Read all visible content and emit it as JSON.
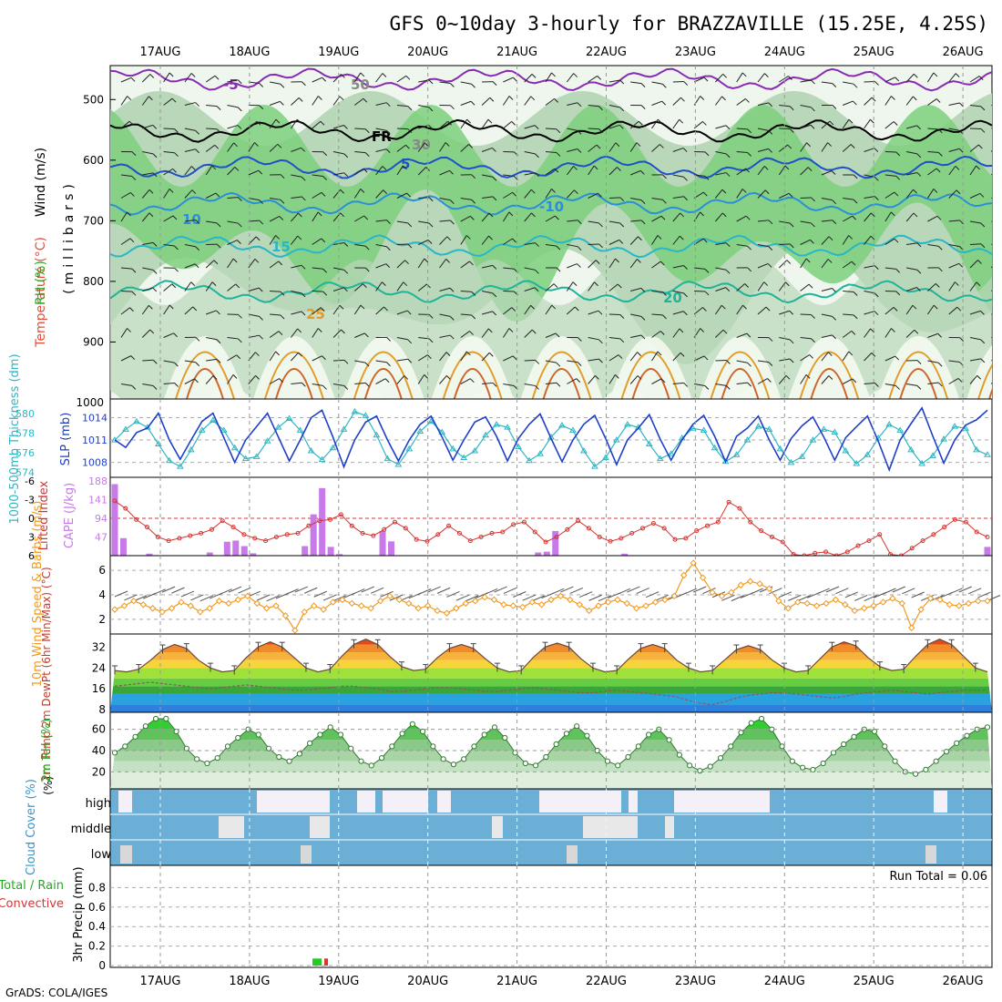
{
  "title": "GFS 0~10day 3-hourly for BRAZZAVILLE (15.25E, 4.25S)",
  "footer": "GrADS: COLA/IGES",
  "colors": {
    "rh_light": "#dceedc",
    "rh_mid": "#b9d7b9",
    "rh_high": "#7cd07c",
    "rh_max": "#22cc22",
    "temp_iso": "#1fb49a",
    "slp": "#1e3fc8",
    "thickness": "#2fb6c4",
    "cape": "#c77ae8",
    "lifted": "#d8332f",
    "wind10": "#f09a20",
    "cloud": "#6baed6",
    "precip_total": "#22cc22",
    "precip_conv": "#dd3333"
  },
  "chart_data": [
    {
      "id": "upper",
      "type": "heatmap",
      "ylabel": "(millibars)",
      "side_labels": [
        "Wind (m/s)",
        "Temperature (°C)",
        "RH (%)"
      ],
      "x_ticks": [
        "17AUG",
        "18AUG",
        "19AUG",
        "20AUG",
        "21AUG",
        "22AUG",
        "23AUG",
        "24AUG",
        "25AUG",
        "26AUG"
      ],
      "y_ticks": [
        500,
        600,
        700,
        800,
        900,
        1000
      ],
      "ylim": [
        1000,
        450
      ],
      "isotherm_labels": [
        "-5",
        "5",
        "10",
        "15",
        "20",
        "25",
        "30",
        "FR",
        "-10",
        "50"
      ]
    },
    {
      "id": "slp",
      "type": "line",
      "ylabel_left": "1000-500mb Thickness (dm)",
      "ylabel_right": "SLP (mb)",
      "ticks_left": [
        574,
        576,
        578,
        580
      ],
      "ticks_right": [
        1008,
        1011,
        1014
      ],
      "ylim_left": [
        573.5,
        581.5
      ],
      "ylim_right": [
        1006,
        1016.5
      ],
      "series": [
        {
          "name": "SLP",
          "axis": "right",
          "values": [
            1011,
            1010,
            1012,
            1012.6,
            1014.6,
            1011,
            1008.4,
            1011,
            1013.5,
            1014.6,
            1011.3,
            1008,
            1011,
            1012.8,
            1014.6,
            1011.4,
            1008.2,
            1011,
            1014,
            1015,
            1011.4,
            1007.4,
            1011,
            1013.4,
            1014.2,
            1011,
            1008.2,
            1011,
            1013.1,
            1014.2,
            1011.4,
            1008.3,
            1011,
            1013.4,
            1014.1,
            1011.5,
            1008.2,
            1011.2,
            1013.1,
            1014.5,
            1011.2,
            1008.1,
            1011,
            1013.1,
            1014.3,
            1011.2,
            1007.7,
            1011,
            1012.6,
            1014.4,
            1011.1,
            1008.3,
            1011,
            1013.1,
            1014.3,
            1011.5,
            1008.1,
            1011.5,
            1012.6,
            1014.2,
            1011,
            1008.3,
            1011.2,
            1012.9,
            1014.1,
            1011.4,
            1008.3,
            1011.3,
            1012.8,
            1014.2,
            1010.8,
            1007,
            1011,
            1013.2,
            1015.3,
            1011.5,
            1007.9,
            1011,
            1013,
            1013.7,
            1015
          ]
        },
        {
          "name": "Thickness",
          "axis": "left",
          "values": [
            577.3,
            578.4,
            579.2,
            578.6,
            576.9,
            575.2,
            574.6,
            576.3,
            578.3,
            579.3,
            578.3,
            576.5,
            575.4,
            575.6,
            577.2,
            578.6,
            579.5,
            578.3,
            576.2,
            575.3,
            576.5,
            578.4,
            580.2,
            579.8,
            577.8,
            575.4,
            574.8,
            576.4,
            578.2,
            579.2,
            578.1,
            576.4,
            575.5,
            576.2,
            577.8,
            578.9,
            578.6,
            576.6,
            575.2,
            575.9,
            577.6,
            578.8,
            578.3,
            576.2,
            574.6,
            575.5,
            577.3,
            578.9,
            578.6,
            576.9,
            575.4,
            575.9,
            577.5,
            578.5,
            578.3,
            576.5,
            575.1,
            575.8,
            577.3,
            578.7,
            578.4,
            576.4,
            575,
            575.6,
            577.3,
            578.4,
            578.1,
            576.2,
            574.9,
            575.8,
            577.5,
            578.9,
            578.3,
            576.3,
            574.9,
            575.7,
            577.4,
            578.7,
            578.5,
            576.3,
            575.8
          ]
        }
      ]
    },
    {
      "id": "cape",
      "type": "bar",
      "ylabel_left": "Lifted Index",
      "ylabel_right": "CAPE (J/kg)",
      "ticks_left": [
        "-6",
        "-3",
        "0",
        "3",
        "6"
      ],
      "ticks_right": [
        47,
        94,
        141,
        188
      ],
      "ylim_cape": [
        0,
        188
      ],
      "ylim_li": [
        6,
        -6
      ],
      "series": [
        {
          "name": "CAPE",
          "values": [
            180,
            44,
            0,
            0,
            5,
            0,
            0,
            0,
            0,
            0,
            0,
            8,
            0,
            35,
            38,
            24,
            6,
            0,
            0,
            0,
            0,
            0,
            24,
            104,
            170,
            22,
            4,
            0,
            0,
            0,
            0,
            62,
            36,
            0,
            0,
            0,
            0,
            0,
            0,
            0,
            0,
            0,
            0,
            0,
            0,
            0,
            0,
            0,
            0,
            8,
            10,
            62,
            0,
            0,
            0,
            0,
            0,
            0,
            0,
            5,
            0,
            0,
            0,
            0,
            0,
            0,
            0,
            0,
            0,
            0,
            0,
            0,
            0,
            0,
            0,
            0,
            0,
            0,
            0,
            0,
            0,
            0,
            0,
            0,
            0,
            0,
            0,
            0,
            0,
            0,
            0,
            0,
            0,
            0,
            0,
            0,
            0,
            0,
            0,
            0,
            0,
            22
          ]
        },
        {
          "name": "Lifted Index",
          "values": [
            -2.8,
            -1.6,
            0.2,
            1.4,
            3.0,
            3.6,
            3.2,
            2.8,
            2.4,
            1.8,
            0.4,
            1.4,
            2.6,
            3.2,
            3.6,
            3.0,
            2.6,
            2.4,
            1.2,
            0.4,
            0.2,
            -0.6,
            1.2,
            2.4,
            2.8,
            1.8,
            0.6,
            1.6,
            3.4,
            3.7,
            2.6,
            1.2,
            2.4,
            3.6,
            3.0,
            2.4,
            2.2,
            1.0,
            0.6,
            2.2,
            3.8,
            3.0,
            1.8,
            0.4,
            1.6,
            3.0,
            3.7,
            3.2,
            2.4,
            1.6,
            0.8,
            1.6,
            3.4,
            3.2,
            2.0,
            1.2,
            0.6,
            -2.6,
            -1.6,
            0.6,
            2.0,
            3.0,
            3.8,
            5.8,
            6.0,
            5.6,
            5.4,
            6.0,
            5.4,
            4.4,
            3.6,
            2.6,
            5.8,
            6.0,
            4.8,
            3.6,
            2.6,
            1.4,
            0.2,
            0.6,
            2.2,
            3.0
          ]
        }
      ]
    },
    {
      "id": "wind10",
      "type": "line",
      "ylabel": "10m Wind Speed & Barbs (m/s)",
      "ticks": [
        2,
        4,
        6
      ],
      "ylim": [
        0.8,
        7.2
      ],
      "series": [
        {
          "name": "10m Wind Speed",
          "values": [
            2.8,
            3.1,
            3.5,
            3.2,
            2.9,
            2.6,
            2.9,
            3.4,
            3.1,
            2.6,
            2.9,
            3.5,
            3.3,
            3.6,
            3.9,
            3.3,
            2.9,
            3.1,
            2.3,
            1.1,
            2.6,
            3.1,
            2.8,
            3.4,
            3.6,
            3.3,
            3.1,
            2.9,
            3.5,
            3.9,
            3.6,
            3.3,
            2.9,
            3.1,
            2.7,
            2.5,
            2.9,
            3.3,
            3.5,
            3.8,
            3.6,
            3.2,
            3.1,
            3.0,
            3.4,
            3.2,
            3.6,
            3.9,
            3.6,
            3.2,
            2.7,
            3.1,
            3.4,
            3.6,
            3.3,
            2.9,
            3.1,
            3.4,
            3.6,
            3.9,
            5.6,
            6.6,
            5.4,
            4.2,
            3.9,
            4.2,
            4.8,
            5.1,
            4.9,
            4.5,
            3.5,
            2.9,
            3.4,
            3.3,
            3.1,
            3.3,
            3.6,
            3.2,
            2.7,
            2.9,
            3.1,
            3.4,
            3.7,
            3.3,
            1.3,
            2.8,
            3.7,
            3.6,
            3.2,
            3.1,
            3.3,
            3.5,
            3.5
          ]
        }
      ]
    },
    {
      "id": "temp2m",
      "type": "area",
      "ylabel": "2m Temp 2m DewPt (6hr Min/Max) (°C)",
      "ticks": [
        8,
        16,
        24,
        32
      ],
      "ylim": [
        7,
        37
      ],
      "series": [
        {
          "name": "2m Temp",
          "values": [
            23,
            22.5,
            23.5,
            27,
            31,
            33,
            31.5,
            27,
            24,
            22.5,
            23,
            28,
            32,
            34,
            32,
            28,
            24,
            22.5,
            23.5,
            28.5,
            33,
            35,
            33,
            28.5,
            24.5,
            23,
            23.5,
            28,
            31.5,
            33,
            31.5,
            27.5,
            24,
            22.5,
            23,
            28,
            32,
            33.5,
            32,
            27.5,
            24,
            22.5,
            23,
            27.5,
            31.5,
            33,
            31.5,
            27,
            24,
            22.5,
            23,
            27,
            31,
            32.5,
            31,
            27,
            24,
            22.5,
            23,
            27.5,
            32,
            34,
            32.5,
            28,
            24.5,
            23,
            23.5,
            28.5,
            33,
            35,
            33,
            28.5,
            24,
            22.5
          ]
        },
        {
          "name": "2m DewPt",
          "values": [
            17,
            17.5,
            18,
            18.5,
            18,
            17.5,
            17,
            16.5,
            16,
            16.5,
            17,
            17.5,
            17,
            16.5,
            16,
            15.5,
            15.5,
            16,
            16.5,
            17,
            17,
            16.5,
            16,
            15,
            15,
            15.5,
            16,
            16.5,
            16.5,
            16,
            15.5,
            15,
            15,
            15.5,
            16,
            16.5,
            16,
            15.5,
            15,
            14.5,
            14.5,
            15,
            15.5,
            15,
            14.5,
            14,
            13.5,
            13,
            11.5,
            10.5,
            10,
            11,
            12.5,
            13.5,
            14,
            14.5,
            14.5,
            14,
            13.5,
            13,
            12.5,
            13,
            14,
            14.5,
            15,
            15.5,
            15,
            14.5,
            14,
            14.5,
            15,
            15.5,
            15.5,
            15.5
          ]
        }
      ]
    },
    {
      "id": "rh2m",
      "type": "area",
      "ylabel": "2m RH (%)",
      "ticks": [
        20,
        40,
        60
      ],
      "ylim": [
        4,
        76
      ],
      "series": [
        {
          "name": "2m RH",
          "values": [
            38,
            44,
            53,
            63,
            70,
            70,
            58,
            42,
            32,
            28,
            33,
            44,
            52,
            60,
            55,
            42,
            34,
            30,
            37,
            47,
            55,
            62,
            55,
            42,
            30,
            26,
            33,
            44,
            56,
            65,
            58,
            44,
            32,
            27,
            32,
            44,
            55,
            62,
            52,
            38,
            28,
            26,
            34,
            46,
            56,
            63,
            54,
            40,
            30,
            26,
            34,
            44,
            55,
            60,
            50,
            36,
            26,
            21,
            25,
            33,
            44,
            57,
            66,
            70,
            60,
            44,
            30,
            24,
            22,
            28,
            38,
            46,
            53,
            60,
            58,
            44,
            30,
            20,
            18,
            22,
            30,
            39,
            47,
            54,
            60,
            62
          ]
        }
      ]
    },
    {
      "id": "cloud",
      "type": "heatmap",
      "ylabel": "Cloud Cover (%)",
      "row_labels": [
        "high",
        "middle",
        "low"
      ]
    },
    {
      "id": "precip",
      "type": "bar",
      "ylabel": "3hr Precip (mm)",
      "side_labels": [
        "Total / Rain",
        "Convective"
      ],
      "ticks": [
        "0",
        "0.2",
        "0.4",
        "0.6",
        "0.8"
      ],
      "ylim": [
        0,
        1
      ],
      "run_total": "Run Total = 0.06",
      "series": [
        {
          "name": "Total",
          "values": [
            0.03
          ]
        },
        {
          "name": "Convective",
          "values": [
            0.03
          ]
        }
      ]
    }
  ]
}
